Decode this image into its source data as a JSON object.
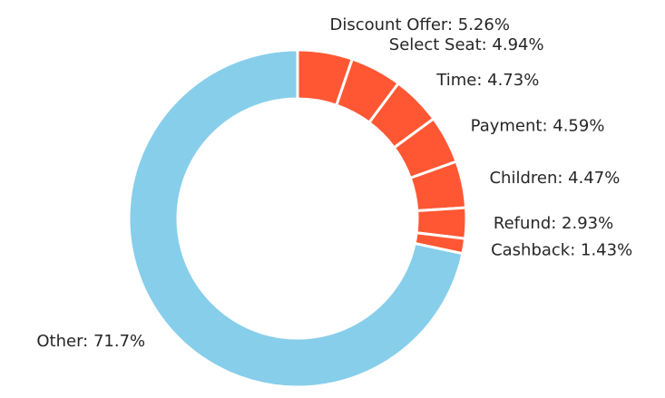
{
  "chart_data": {
    "type": "pie",
    "donut": true,
    "title": "",
    "slices": [
      {
        "name": "Discount Offer",
        "label": "Discount Offer: 5.26%",
        "value": 5.26,
        "color": "#FF5733"
      },
      {
        "name": "Select Seat",
        "label": "Select Seat: 4.94%",
        "value": 4.94,
        "color": "#FF5733"
      },
      {
        "name": "Time",
        "label": "Time: 4.73%",
        "value": 4.73,
        "color": "#FF5733"
      },
      {
        "name": "Payment",
        "label": "Payment: 4.59%",
        "value": 4.59,
        "color": "#FF5733"
      },
      {
        "name": "Children",
        "label": "Children: 4.47%",
        "value": 4.47,
        "color": "#FF5733"
      },
      {
        "name": "Refund",
        "label": "Refund: 2.93%",
        "value": 2.93,
        "color": "#FF5733"
      },
      {
        "name": "Cashback",
        "label": "Cashback: 1.43%",
        "value": 1.43,
        "color": "#FF5733"
      },
      {
        "name": "Other",
        "label": "Other: 71.7%",
        "value": 71.7,
        "color": "#87CEEB"
      }
    ]
  }
}
